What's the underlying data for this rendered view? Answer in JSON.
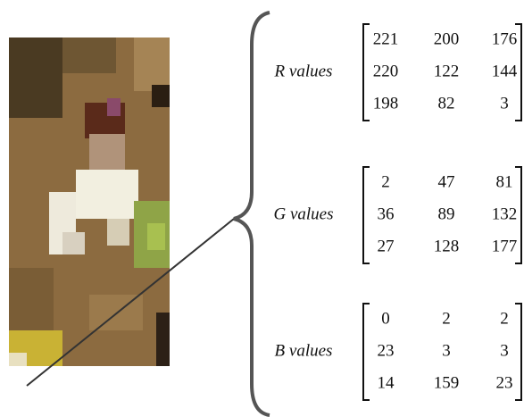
{
  "matrices": [
    {
      "label": "R values",
      "rows": [
        [
          221,
          200,
          176
        ],
        [
          220,
          122,
          144
        ],
        [
          198,
          82,
          3
        ]
      ]
    },
    {
      "label": "G values",
      "rows": [
        [
          2,
          47,
          81
        ],
        [
          36,
          89,
          132
        ],
        [
          27,
          128,
          177
        ]
      ]
    },
    {
      "label": "B values",
      "rows": [
        [
          0,
          2,
          2
        ],
        [
          23,
          3,
          3
        ],
        [
          14,
          159,
          23
        ]
      ]
    }
  ]
}
